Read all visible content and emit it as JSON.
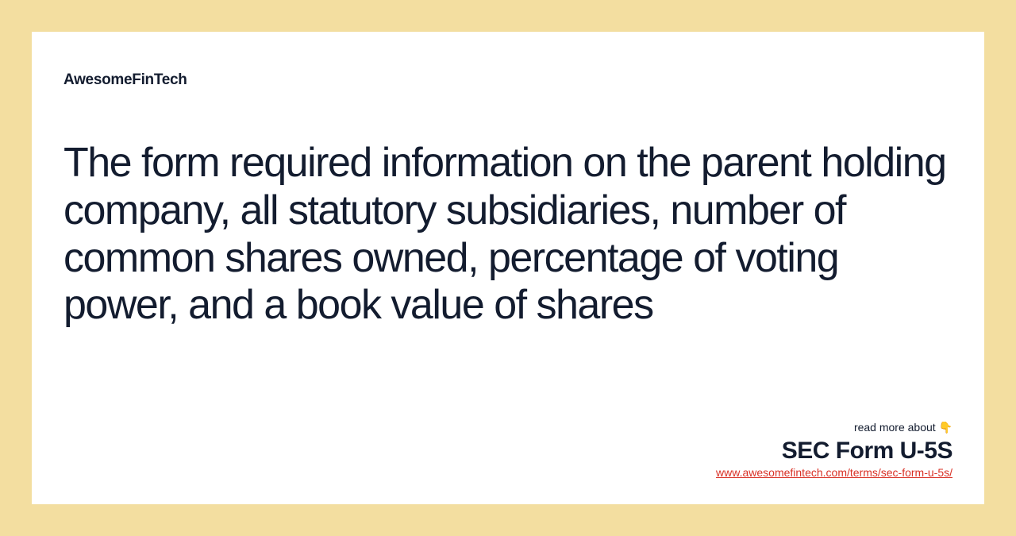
{
  "brand": "AwesomeFinTech",
  "mainText": "The form required information on the parent holding company, all statutory subsidiaries, number of common shares owned, percentage of voting power, and a book value of shares",
  "footer": {
    "readMore": "read more about 👇",
    "termTitle": "SEC Form U-5S",
    "url": "www.awesomefintech.com/terms/sec-form-u-5s/"
  },
  "colors": {
    "outerBackground": "#f3dea0",
    "cardBackground": "#ffffff",
    "textPrimary": "#131c2f",
    "linkColor": "#d93025"
  },
  "typography": {
    "brandFontSize": 19,
    "brandFontWeight": 800,
    "mainFontSize": 52,
    "mainFontWeight": 400,
    "termFontSize": 30,
    "termFontWeight": 800,
    "readMoreFontSize": 14,
    "urlFontSize": 14
  },
  "layout": {
    "outerWidth": 1280,
    "outerHeight": 675,
    "cardWidth": 1200,
    "cardHeight": 595,
    "cardPaddingTop": 50,
    "cardPaddingSides": 40,
    "cardPaddingBottom": 35
  }
}
